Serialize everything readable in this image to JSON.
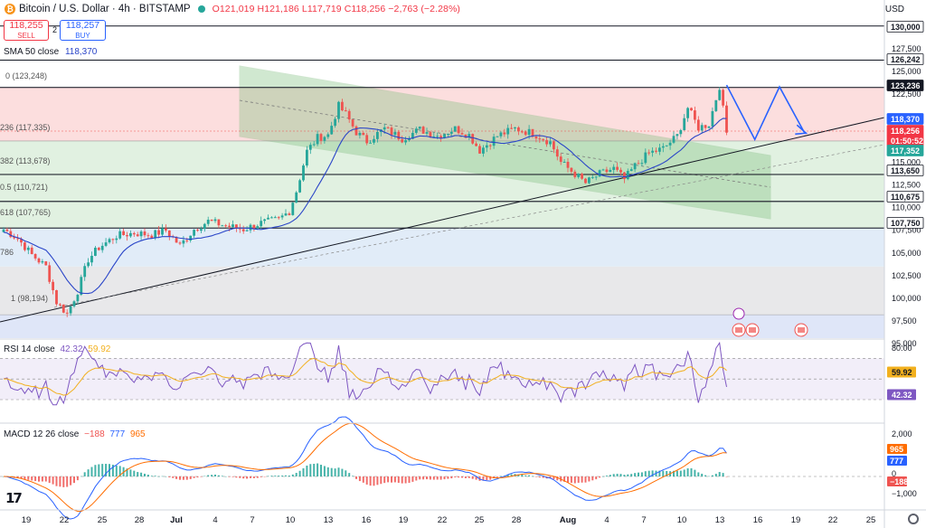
{
  "header": {
    "btc_glyph": "₿",
    "symbol_line": "Bitcoin / U.S. Dollar · 4h · BITSTAMP",
    "ohlc": "O121,019 H121,186 L117,719 C118,256 −2,763 (−2.28%)"
  },
  "trade": {
    "sell_price": "118,255",
    "sell_label": "SELL",
    "spread": "2",
    "buy_price": "118,257",
    "buy_label": "BUY"
  },
  "sma_legend": {
    "label": "SMA 50 close",
    "value": "118,370"
  },
  "rsi_legend": {
    "label": "RSI 14 close",
    "value1": "42.32",
    "value2": "59.92"
  },
  "macd_legend": {
    "label": "MACD 12 26 close",
    "v1": "−188",
    "v2": "777",
    "v3": "965"
  },
  "currency": "USD",
  "colors": {
    "up": "#26a69a",
    "down": "#ef5350",
    "sma": "#2a45c8",
    "rsi": "#7e57c2",
    "rsi_ma": "#f2b01e",
    "macd": "#2962ff",
    "signal": "#ff6d00",
    "fib_red": "#fbd8d8",
    "fib_green": "#dcefdc",
    "fib_blue": "#dce9f7",
    "fib_gray": "#e4e4e6",
    "fib_blue2": "#d9e2f7",
    "channel": "#78b878"
  },
  "price_axis": [
    "130,000",
    "127,500",
    "125,000",
    "122,500",
    "120,000",
    "117,500",
    "115,000",
    "112,500",
    "110,000",
    "107,500",
    "105,000",
    "102,500",
    "100,000",
    "97,500",
    "95,000"
  ],
  "price_tags": [
    {
      "text": "130,000",
      "bg": "#ffffff",
      "fg": "#131722",
      "border": "#131722"
    },
    {
      "text": "126,242",
      "bg": "#ffffff",
      "fg": "#131722",
      "border": "#131722"
    },
    {
      "text": "123,236",
      "bg": "#131722",
      "fg": "#ffffff",
      "border": "#131722"
    },
    {
      "text": "118,370",
      "bg": "#2962ff",
      "fg": "#ffffff",
      "border": "#2962ff"
    },
    {
      "text": "118,256",
      "bg": "#f23645",
      "fg": "#ffffff",
      "border": "#f23645"
    },
    {
      "text": "01:50:52",
      "bg": "#f23645",
      "fg": "#ffffff",
      "border": "#f23645"
    },
    {
      "text": "117,352",
      "bg": "#26a69a",
      "fg": "#ffffff",
      "border": "#26a69a"
    },
    {
      "text": "113,650",
      "bg": "#ffffff",
      "fg": "#131722",
      "border": "#131722"
    },
    {
      "text": "110,675",
      "bg": "#ffffff",
      "fg": "#131722",
      "border": "#131722"
    },
    {
      "text": "107,750",
      "bg": "#ffffff",
      "fg": "#131722",
      "border": "#131722"
    }
  ],
  "fib_labels": [
    {
      "text": "0 (123,248)"
    },
    {
      "text": "236 (117,335)"
    },
    {
      "text": "382 (113,678)"
    },
    {
      "text": "0.5 (110,721)"
    },
    {
      "text": "618 (107,765)"
    },
    {
      "text": "786"
    },
    {
      "text": "1 (98,194)"
    }
  ],
  "rsi_axis": [
    "80.00"
  ],
  "rsi_tags": [
    {
      "text": "59.92",
      "bg": "#f2b01e",
      "fg": "#131722"
    },
    {
      "text": "42.32",
      "bg": "#7e57c2",
      "fg": "#ffffff"
    }
  ],
  "macd_axis": [
    "2,000",
    "0",
    "−1,000"
  ],
  "macd_tags": [
    {
      "text": "965",
      "bg": "#ff6d00",
      "fg": "#ffffff"
    },
    {
      "text": "777",
      "bg": "#2962ff",
      "fg": "#ffffff"
    },
    {
      "text": "−188",
      "bg": "#ef5350",
      "fg": "#ffffff"
    }
  ],
  "time_axis": [
    "19",
    "22",
    "25",
    "28",
    "Jul",
    "4",
    "7",
    "10",
    "13",
    "16",
    "19",
    "22",
    "25",
    "28",
    "Aug",
    "4",
    "7",
    "10",
    "13",
    "16",
    "19",
    "22",
    "25"
  ],
  "logo_text": "17",
  "chart_data": {
    "type": "candlestick",
    "timeframe": "4h",
    "symbol": "BTC/USD",
    "price_range": [
      95000,
      130000
    ],
    "waypoints": [
      [
        0,
        107600
      ],
      [
        4,
        106600
      ],
      [
        8,
        104800
      ],
      [
        12,
        103500
      ],
      [
        15,
        99600
      ],
      [
        18,
        98300
      ],
      [
        21,
        100800
      ],
      [
        24,
        104300
      ],
      [
        27,
        105600
      ],
      [
        32,
        106900
      ],
      [
        37,
        107200
      ],
      [
        42,
        107000
      ],
      [
        46,
        107500
      ],
      [
        50,
        105800
      ],
      [
        54,
        107600
      ],
      [
        58,
        108500
      ],
      [
        63,
        108000
      ],
      [
        68,
        107600
      ],
      [
        73,
        108300
      ],
      [
        78,
        108700
      ],
      [
        81,
        109600
      ],
      [
        83,
        111800
      ],
      [
        86,
        116200
      ],
      [
        89,
        117700
      ],
      [
        92,
        118000
      ],
      [
        95,
        121200
      ],
      [
        97,
        120300
      ],
      [
        100,
        118300
      ],
      [
        103,
        117300
      ],
      [
        108,
        118700
      ],
      [
        113,
        117600
      ],
      [
        118,
        118600
      ],
      [
        123,
        117900
      ],
      [
        128,
        118700
      ],
      [
        132,
        118000
      ],
      [
        135,
        116300
      ],
      [
        140,
        117900
      ],
      [
        145,
        118700
      ],
      [
        150,
        118200
      ],
      [
        155,
        117200
      ],
      [
        158,
        115000
      ],
      [
        162,
        113700
      ],
      [
        165,
        112700
      ],
      [
        169,
        113700
      ],
      [
        173,
        114300
      ],
      [
        176,
        113100
      ],
      [
        179,
        114600
      ],
      [
        183,
        116000
      ],
      [
        187,
        116500
      ],
      [
        191,
        117900
      ],
      [
        194,
        121000
      ],
      [
        197,
        118800
      ],
      [
        200,
        119200
      ],
      [
        203,
        123400
      ],
      [
        205,
        118256
      ]
    ],
    "sma50_last": 118370,
    "rsi": {
      "period": 14,
      "last": 42.32,
      "ma_last": 59.92,
      "bands": [
        30,
        70
      ]
    },
    "macd": {
      "fast": 12,
      "slow": 26,
      "hist_last": -188,
      "macd_last": 777,
      "signal_last": 965
    },
    "fib_levels": [
      {
        "ratio": "0",
        "price": 123248
      },
      {
        "ratio": "0.236",
        "price": 117335
      },
      {
        "ratio": "0.382",
        "price": 113678
      },
      {
        "ratio": "0.5",
        "price": 110721
      },
      {
        "ratio": "0.618",
        "price": 107765
      },
      {
        "ratio": "1",
        "price": 98194
      }
    ],
    "horizontal_levels": [
      130000,
      126242,
      123236,
      113650,
      110675,
      107750
    ],
    "projection_zigzag": [
      [
        205,
        123500
      ],
      [
        213,
        117500
      ],
      [
        220,
        123300
      ],
      [
        227,
        118300
      ]
    ]
  }
}
